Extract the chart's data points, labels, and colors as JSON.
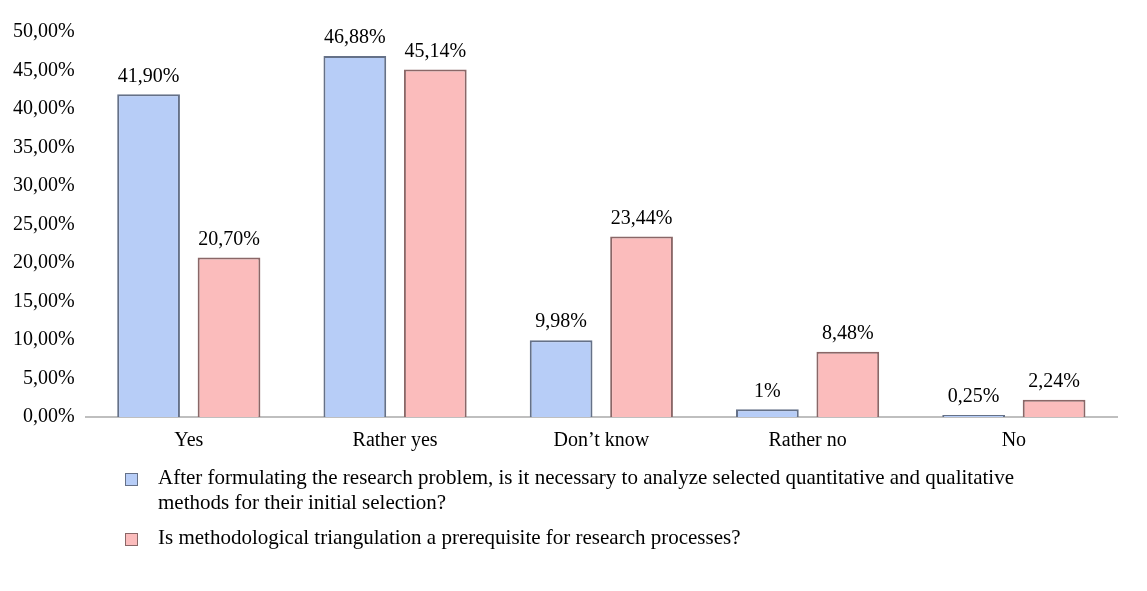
{
  "chart_data": {
    "type": "bar",
    "categories": [
      "Yes",
      "Rather yes",
      "Don’t know",
      "Rather no",
      "No"
    ],
    "series": [
      {
        "name": "After formulating the research problem, is it necessary to analyze selected quantitative and qualitative methods for their initial selection?",
        "color": "#b7cdf7",
        "values": [
          41.9,
          46.88,
          9.98,
          1,
          0.25
        ],
        "value_labels": [
          "41,90%",
          "46,88%",
          "9,98%",
          "1%",
          "0,25%"
        ]
      },
      {
        "name": "Is methodological triangulation a prerequisite for research processes?",
        "color": "#fbbcbc",
        "values": [
          20.7,
          45.14,
          23.44,
          8.48,
          2.24
        ],
        "value_labels": [
          "20,70%",
          "45,14%",
          "23,44%",
          "8,48%",
          "2,24%"
        ]
      }
    ],
    "ylim": [
      0,
      50
    ],
    "yticks": [
      {
        "value": 0,
        "label": "0,00%"
      },
      {
        "value": 5,
        "label": "5,00%"
      },
      {
        "value": 10,
        "label": "10,00%"
      },
      {
        "value": 15,
        "label": "15,00%"
      },
      {
        "value": 20,
        "label": "20,00%"
      },
      {
        "value": 25,
        "label": "25,00%"
      },
      {
        "value": 30,
        "label": "30,00%"
      },
      {
        "value": 35,
        "label": "35,00%"
      },
      {
        "value": 40,
        "label": "40,00%"
      },
      {
        "value": 45,
        "label": "45,00%"
      },
      {
        "value": 50,
        "label": "50,00%"
      }
    ],
    "grid": false,
    "legend": "bottom"
  }
}
